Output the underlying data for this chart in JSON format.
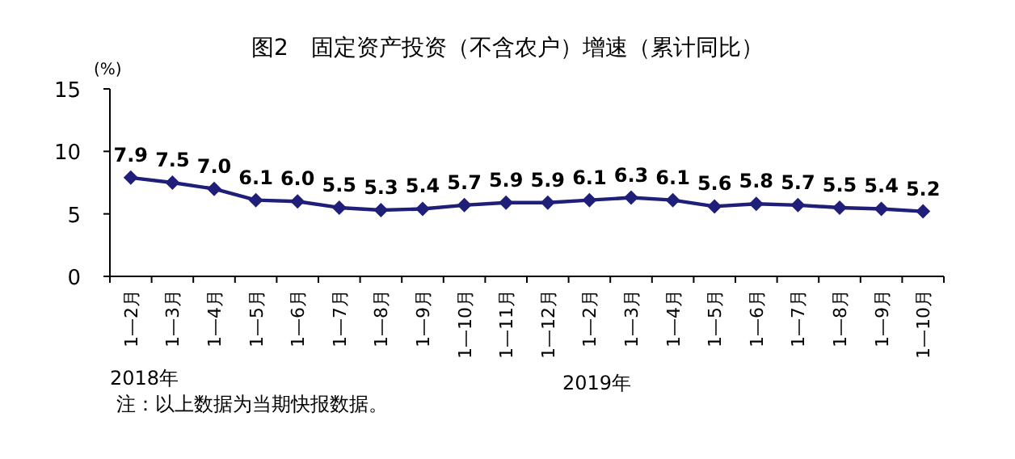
{
  "chart_data": {
    "type": "line",
    "title": "图2　固定资产投资（不含农户）增速（累计同比）",
    "ylabel": "(%)",
    "categories": [
      "1—2月",
      "1—3月",
      "1—4月",
      "1—5月",
      "1—6月",
      "1—7月",
      "1—8月",
      "1—9月",
      "1—10月",
      "1—11月",
      "1—12月",
      "1—2月",
      "1—3月",
      "1—4月",
      "1—5月",
      "1—6月",
      "1—7月",
      "1—8月",
      "1—9月",
      "1—10月"
    ],
    "series": [
      {
        "color": "#1f1f7a",
        "values": [
          7.9,
          7.5,
          7.0,
          6.1,
          6.0,
          5.5,
          5.3,
          5.4,
          5.7,
          5.9,
          5.9,
          6.1,
          6.3,
          6.1,
          5.6,
          5.8,
          5.7,
          5.5,
          5.4,
          5.2
        ],
        "value_labels": [
          "7.9",
          "7.5",
          "7.0",
          "6.1",
          "6.0",
          "5.5",
          "5.3",
          "5.4",
          "5.7",
          "5.9",
          "5.9",
          "6.1",
          "6.3",
          "6.1",
          "5.6",
          "5.8",
          "5.7",
          "5.5",
          "5.4",
          "5.2"
        ]
      }
    ],
    "ylim": [
      0,
      15
    ],
    "yticks": [
      0,
      5,
      10,
      15
    ],
    "marker": "diamond",
    "line_style": "solid",
    "annotations": [
      "2018年",
      "2019年",
      "注：以上数据为当期快报数据。"
    ]
  }
}
